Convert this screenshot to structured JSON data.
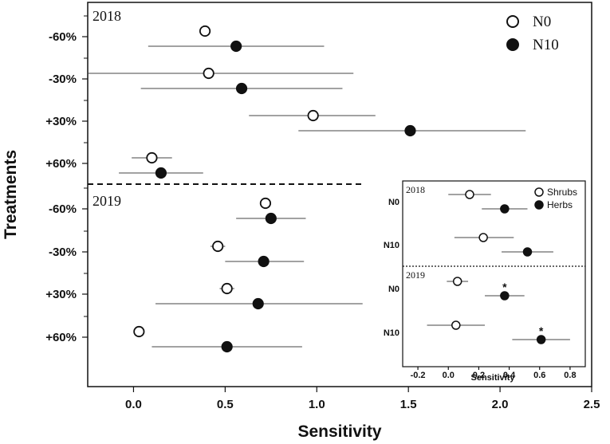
{
  "chart_data": [
    {
      "type": "scatter",
      "subtype": "point-errorbar",
      "title": "",
      "xlabel": "Sensitivity",
      "ylabel": "Treatments",
      "xlim": [
        -0.25,
        2.5
      ],
      "xticks": [
        0.0,
        0.5,
        1.0,
        1.5,
        2.0,
        2.5
      ],
      "xtick_labels": [
        "0.0",
        "0.5",
        "1.0",
        "1.5",
        "2.0",
        "2.5"
      ],
      "legend": {
        "position": "top-right",
        "entries": [
          "N0",
          "N10"
        ]
      },
      "panels": [
        {
          "year": "2018",
          "categories": [
            "-60%",
            "-30%",
            "+30%",
            "+60%"
          ],
          "series": [
            {
              "name": "N0",
              "marker": "open-circle",
              "values": [
                0.39,
                0.41,
                0.98,
                0.1
              ],
              "err_low": [
                null,
                -0.25,
                0.63,
                -0.01
              ],
              "err_high": [
                null,
                1.2,
                1.32,
                0.21
              ]
            },
            {
              "name": "N10",
              "marker": "filled-circle",
              "values": [
                0.56,
                0.59,
                1.51,
                0.15
              ],
              "err_low": [
                0.08,
                0.04,
                0.9,
                -0.08
              ],
              "err_high": [
                1.04,
                1.14,
                2.14,
                0.38
              ]
            }
          ]
        },
        {
          "year": "2019",
          "categories": [
            "-60%",
            "-30%",
            "+30%",
            "+60%"
          ],
          "series": [
            {
              "name": "N0",
              "marker": "open-circle",
              "values": [
                0.72,
                0.46,
                0.51,
                0.03
              ],
              "err_low": [
                0.69,
                0.42,
                0.47,
                null
              ],
              "err_high": [
                0.75,
                0.5,
                0.55,
                null
              ]
            },
            {
              "name": "N10",
              "marker": "filled-circle",
              "values": [
                0.75,
                0.71,
                0.68,
                0.51
              ],
              "err_low": [
                0.56,
                0.5,
                0.12,
                0.1
              ],
              "err_high": [
                0.94,
                0.93,
                1.25,
                0.92
              ]
            }
          ]
        }
      ]
    },
    {
      "type": "scatter",
      "subtype": "point-errorbar-inset",
      "title": "",
      "xlabel": "Sensitivity",
      "ylabel": "",
      "xlim": [
        -0.3,
        0.9
      ],
      "xticks": [
        -0.2,
        0.0,
        0.2,
        0.4,
        0.6,
        0.8
      ],
      "xtick_labels": [
        "-0.2",
        "0.0",
        "0.2",
        "0.4",
        "0.6",
        "0.8"
      ],
      "legend": {
        "position": "top-right",
        "entries": [
          "Shrubs",
          "Herbs"
        ]
      },
      "panels": [
        {
          "year": "2018",
          "categories": [
            "N0",
            "N10"
          ],
          "series": [
            {
              "name": "Shrubs",
              "marker": "open-circle",
              "values": [
                0.14,
                0.23
              ],
              "err_low": [
                0.0,
                0.04
              ],
              "err_high": [
                0.28,
                0.43
              ],
              "annotations": [
                "",
                ""
              ]
            },
            {
              "name": "Herbs",
              "marker": "filled-circle",
              "values": [
                0.37,
                0.52
              ],
              "err_low": [
                0.22,
                0.35
              ],
              "err_high": [
                0.52,
                0.69
              ],
              "annotations": [
                "",
                ""
              ]
            }
          ]
        },
        {
          "year": "2019",
          "categories": [
            "N0",
            "N10"
          ],
          "series": [
            {
              "name": "Shrubs",
              "marker": "open-circle",
              "values": [
                0.06,
                0.05
              ],
              "err_low": [
                -0.01,
                -0.14
              ],
              "err_high": [
                0.13,
                0.24
              ],
              "annotations": [
                "",
                ""
              ]
            },
            {
              "name": "Herbs",
              "marker": "filled-circle",
              "values": [
                0.37,
                0.61
              ],
              "err_low": [
                0.24,
                0.42
              ],
              "err_high": [
                0.5,
                0.8
              ],
              "annotations": [
                "*",
                "*"
              ]
            }
          ]
        }
      ]
    }
  ]
}
